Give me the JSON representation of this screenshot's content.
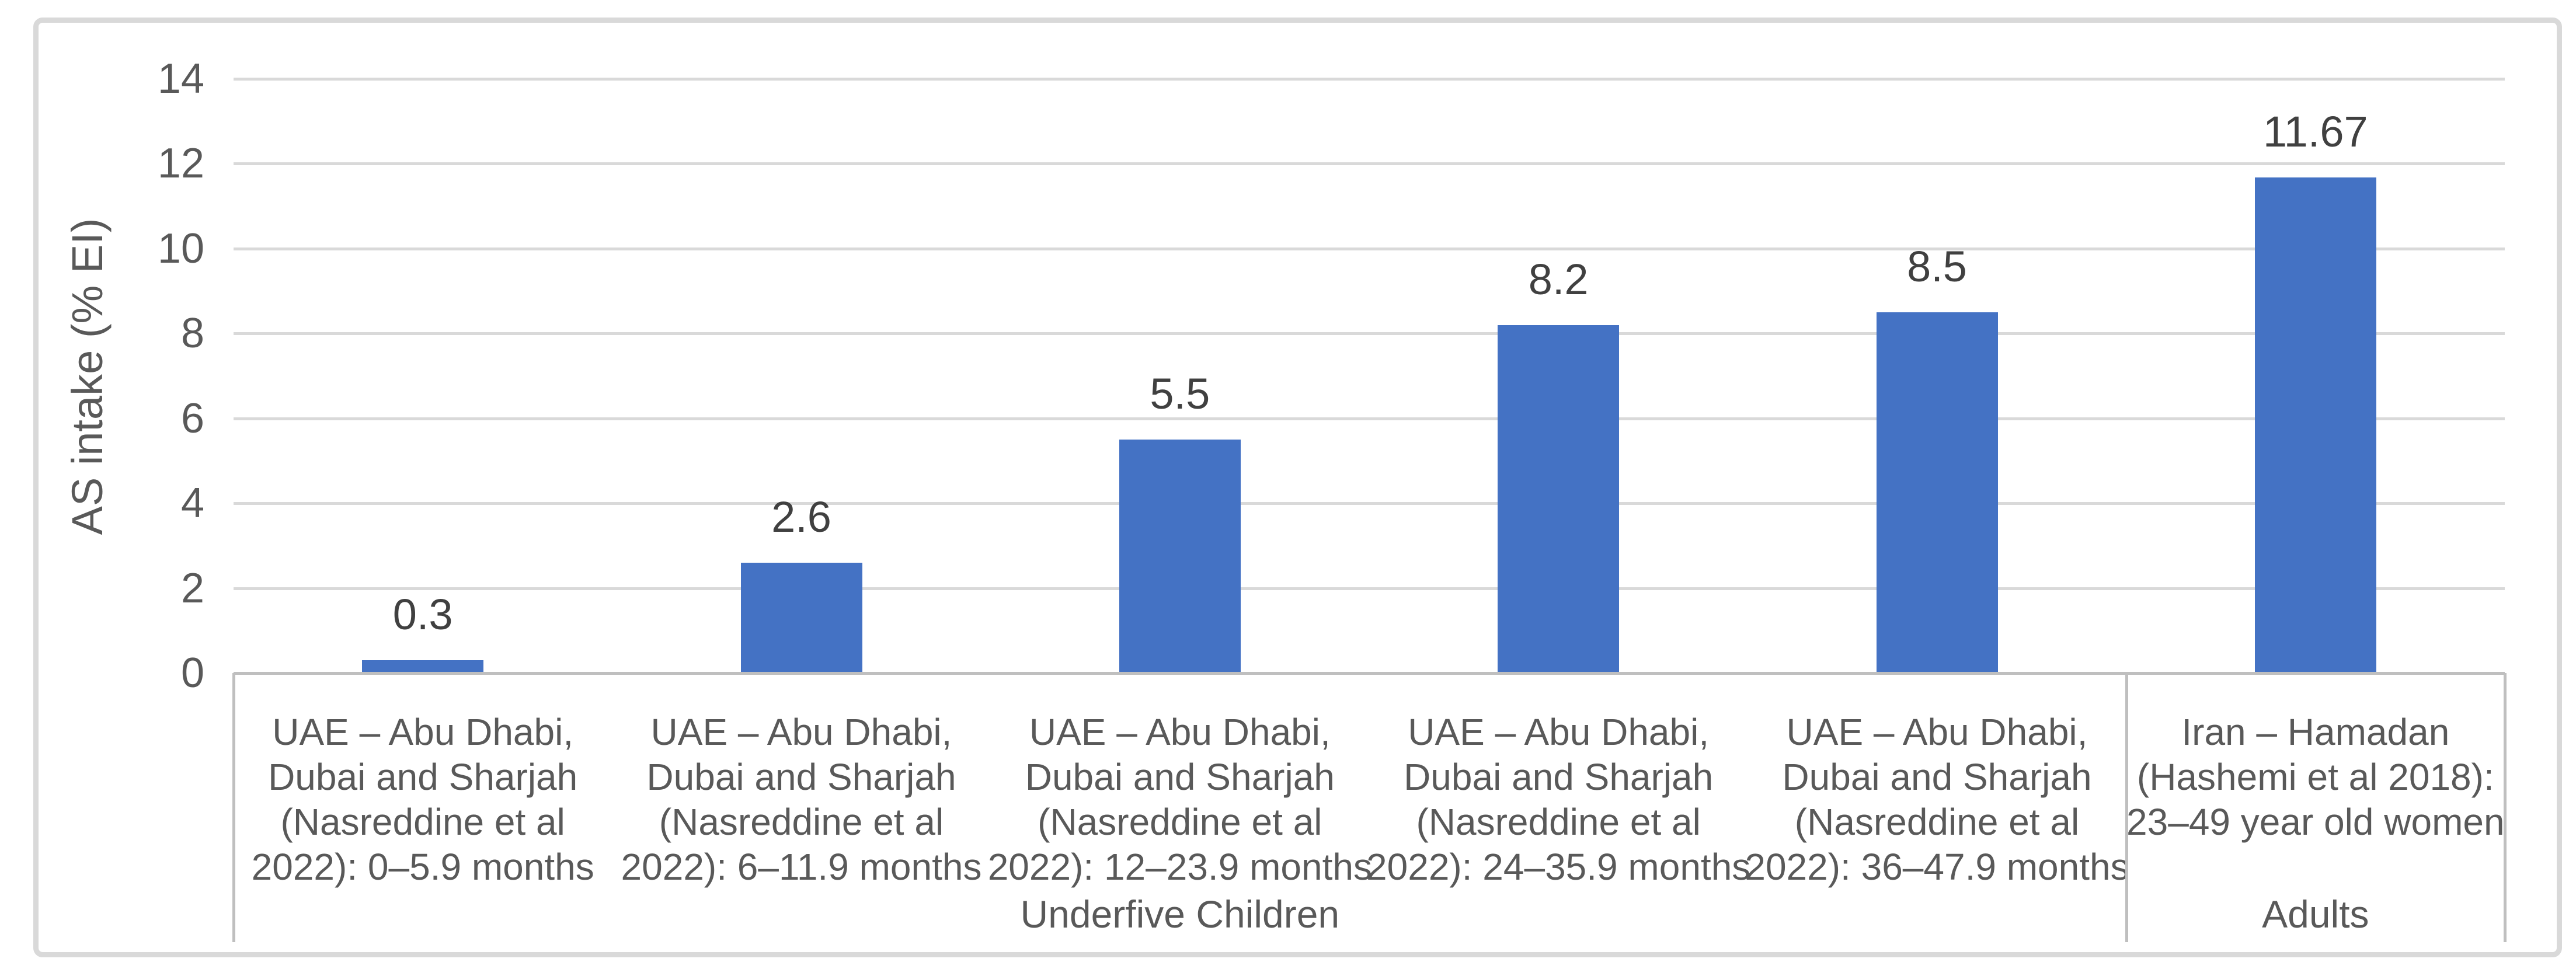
{
  "chart_data": {
    "type": "bar",
    "title": "",
    "ylabel": "AS intake (% EI)",
    "xlabel": "",
    "ylim": [
      0,
      14
    ],
    "yticks": [
      0,
      2,
      4,
      6,
      8,
      10,
      12,
      14
    ],
    "grid": true,
    "legend_position": "none",
    "bar_color": "#4472C4",
    "categories": [
      "UAE – Abu Dhabi,\nDubai and Sharjah\n(Nasreddine et al\n2022): 0–5.9 months",
      "UAE – Abu Dhabi,\nDubai and Sharjah\n(Nasreddine et al\n2022): 6–11.9 months",
      "UAE – Abu Dhabi,\nDubai and Sharjah\n(Nasreddine et al\n2022): 12–23.9 months",
      "UAE – Abu Dhabi,\nDubai and Sharjah\n(Nasreddine et al\n2022): 24–35.9 months",
      "UAE – Abu Dhabi,\nDubai and Sharjah\n(Nasreddine et al\n2022): 36–47.9 months",
      "Iran – Hamadan\n(Hashemi et al 2018):\n23–49 year old women"
    ],
    "values": [
      0.3,
      2.6,
      5.5,
      8.2,
      8.5,
      11.67
    ],
    "data_labels": [
      "0.3",
      "2.6",
      "5.5",
      "8.2",
      "8.5",
      "11.67"
    ],
    "groups": [
      {
        "label": "Underfive Children",
        "span": 5
      },
      {
        "label": "Adults",
        "span": 1
      }
    ]
  },
  "colors": {
    "bar": "#4472C4",
    "gridline": "#D9D9D9",
    "axis_line": "#BFBFBF",
    "frame_border": "#D9D9D9",
    "axis_text": "#595959",
    "data_label_text": "#404040",
    "background": "#FFFFFF"
  }
}
